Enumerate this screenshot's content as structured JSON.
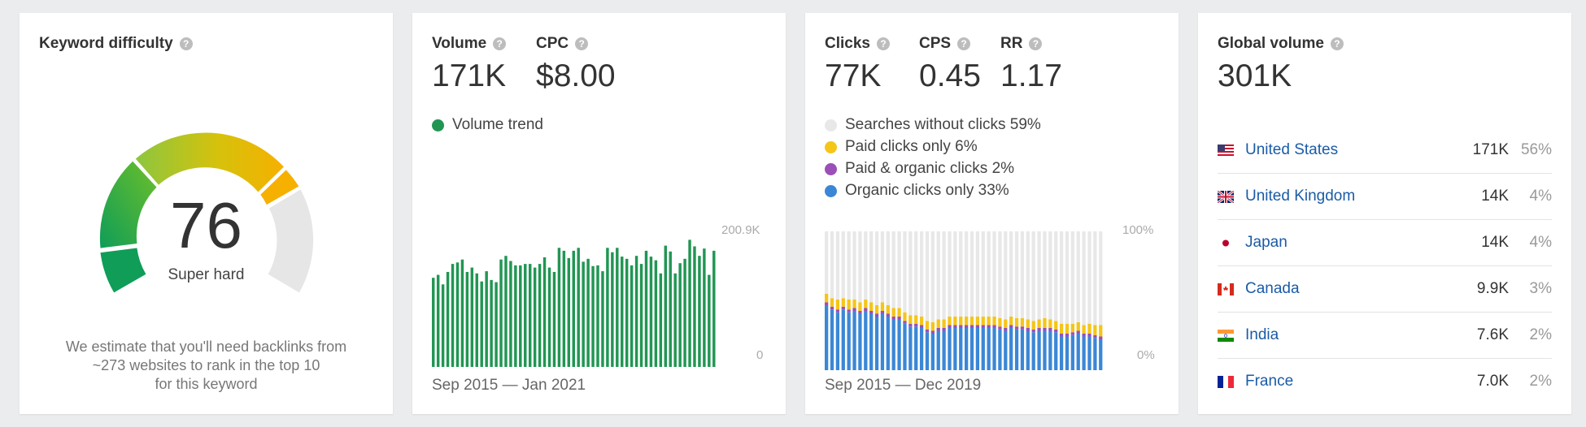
{
  "difficulty": {
    "title": "Keyword difficulty",
    "score": "76",
    "score_value": 76,
    "label": "Super hard",
    "note_line1": "We estimate that you'll need backlinks from",
    "note_line2": "~273 websites to rank in the top 10",
    "note_line3": "for this keyword"
  },
  "volume": {
    "volume_label": "Volume",
    "volume_value": "171K",
    "cpc_label": "CPC",
    "cpc_value": "$8.00",
    "trend_label": "Volume trend",
    "trend_color": "#219653",
    "axis_max": "200.9K",
    "axis_min": "0",
    "date_range": "Sep 2015 — Jan 2021",
    "chart_data": {
      "type": "bar",
      "series": [
        {
          "name": "Volume trend",
          "values": [
            122,
            126,
            113,
            130,
            141,
            143,
            147,
            130,
            136,
            128,
            117,
            131,
            119,
            116,
            147,
            152,
            145,
            139,
            139,
            141,
            141,
            136,
            141,
            150,
            136,
            130,
            163,
            159,
            149,
            159,
            163,
            144,
            148,
            138,
            139,
            131,
            163,
            157,
            163,
            151,
            148,
            139,
            152,
            141,
            159,
            151,
            146,
            128,
            166,
            158,
            128,
            142,
            148,
            174,
            165,
            152,
            162,
            126,
            159
          ]
        }
      ],
      "ylim": [
        0,
        200900
      ]
    }
  },
  "clicks": {
    "clicks_label": "Clicks",
    "clicks_value": "77K",
    "cps_label": "CPS",
    "cps_value": "0.45",
    "rr_label": "RR",
    "rr_value": "1.17",
    "legend": [
      {
        "label": "Searches without clicks 59%",
        "color": "#e8e8e8"
      },
      {
        "label": "Paid clicks only 6%",
        "color": "#f5c518"
      },
      {
        "label": "Paid & organic clicks 2%",
        "color": "#9b4fb8"
      },
      {
        "label": "Organic clicks only 33%",
        "color": "#3b87d6"
      }
    ],
    "axis_max": "100%",
    "axis_min": "0%",
    "date_range": "Sep 2015 — Dec 2019",
    "chart_data": {
      "type": "bar",
      "organic_pct": [
        48,
        45,
        43,
        45,
        43,
        44,
        42,
        44,
        42,
        40,
        42,
        40,
        38,
        38,
        35,
        33,
        33,
        32,
        29,
        28,
        30,
        30,
        32,
        32,
        32,
        32,
        32,
        32,
        32,
        32,
        32,
        31,
        30,
        32,
        31,
        31,
        30,
        29,
        30,
        30,
        30,
        29,
        26,
        26,
        27,
        28,
        26,
        26,
        25,
        24
      ],
      "paid_pct": [
        6,
        6,
        7,
        6,
        7,
        6,
        6,
        6,
        6,
        6,
        6,
        6,
        6,
        6,
        6,
        6,
        6,
        6,
        6,
        6,
        6,
        6,
        6,
        6,
        6,
        6,
        6,
        6,
        6,
        6,
        6,
        6,
        6,
        6,
        6,
        6,
        6,
        6,
        6,
        7,
        6,
        6,
        7,
        7,
        6,
        6,
        6,
        7,
        7,
        8
      ],
      "paid_organic_pct": [
        2,
        2,
        2,
        2,
        2,
        2,
        2,
        2,
        2,
        2,
        2,
        2,
        2,
        2,
        2,
        2,
        2,
        2,
        2,
        2,
        2,
        2,
        2,
        2,
        2,
        2,
        2,
        2,
        2,
        2,
        2,
        2,
        2,
        2,
        2,
        2,
        2,
        2,
        2,
        2,
        2,
        2,
        2,
        2,
        2,
        2,
        2,
        2,
        2,
        2
      ],
      "ylim": [
        0,
        100
      ]
    }
  },
  "global": {
    "title": "Global volume",
    "total": "301K",
    "countries": [
      {
        "name": "United States",
        "volume": "171K",
        "pct": "56%",
        "flag": "us"
      },
      {
        "name": "United Kingdom",
        "volume": "14K",
        "pct": "4%",
        "flag": "uk"
      },
      {
        "name": "Japan",
        "volume": "14K",
        "pct": "4%",
        "flag": "jp"
      },
      {
        "name": "Canada",
        "volume": "9.9K",
        "pct": "3%",
        "flag": "ca"
      },
      {
        "name": "India",
        "volume": "7.6K",
        "pct": "2%",
        "flag": "in"
      },
      {
        "name": "France",
        "volume": "7.0K",
        "pct": "2%",
        "flag": "fr"
      }
    ]
  }
}
